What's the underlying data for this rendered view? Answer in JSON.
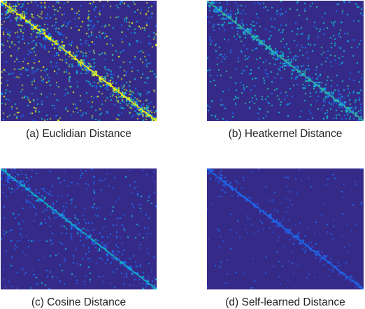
{
  "figure": {
    "panels": [
      {
        "caption": "(a) Euclidian Distance"
      },
      {
        "caption": "(b) Heatkernel Distance"
      },
      {
        "caption": "(c) Cosine Distance"
      },
      {
        "caption": "(d) Self-learned Distance"
      }
    ]
  },
  "chart_data": [
    {
      "type": "heatmap",
      "title": "(a) Euclidian Distance",
      "colormap": "parula",
      "matrix_size": 140,
      "block_diagonal": true,
      "background_color": "#352a87",
      "intensity": "high",
      "dominant_colors": [
        "#352a87",
        "#1a6ef5",
        "#11b9c9",
        "#a5be39",
        "#f9fb0e"
      ]
    },
    {
      "type": "heatmap",
      "title": "(b) Heatkernel Distance",
      "colormap": "parula",
      "matrix_size": 140,
      "block_diagonal": true,
      "background_color": "#352a87",
      "intensity": "medium",
      "dominant_colors": [
        "#352a87",
        "#1a6ef5",
        "#11b9c9",
        "#33b7a0"
      ]
    },
    {
      "type": "heatmap",
      "title": "(c) Cosine Distance",
      "colormap": "parula",
      "matrix_size": 140,
      "block_diagonal": true,
      "background_color": "#352a87",
      "intensity": "low",
      "dominant_colors": [
        "#352a87",
        "#2c4ed6",
        "#1a6ef5",
        "#11b9c9"
      ]
    },
    {
      "type": "heatmap",
      "title": "(d) Self-learned Distance",
      "colormap": "parula",
      "matrix_size": 140,
      "block_diagonal": true,
      "background_color": "#352a87",
      "intensity": "very-low",
      "dominant_colors": [
        "#352a87",
        "#2c4ed6",
        "#1a6ef5"
      ]
    }
  ]
}
